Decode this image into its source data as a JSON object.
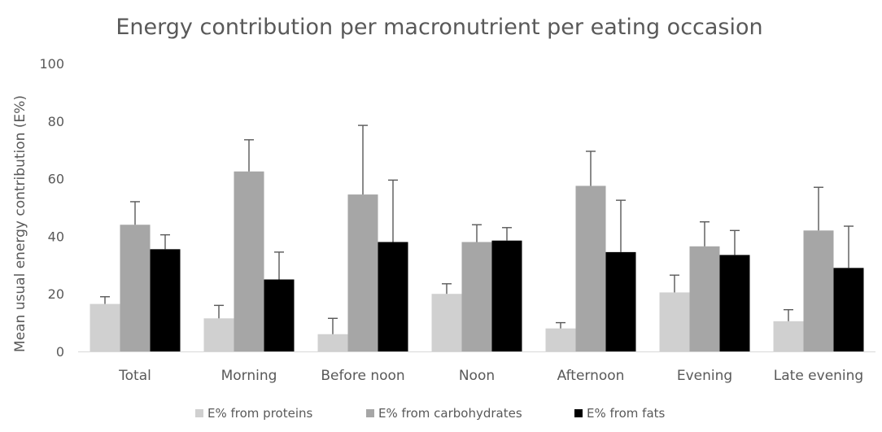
{
  "chart_data": {
    "type": "bar",
    "title": "Energy contribution per macronutrient per eating occasion",
    "xlabel": "",
    "ylabel": "Mean usual energy contribution (E%)",
    "ylim": [
      0,
      100
    ],
    "yticks": [
      0,
      20,
      40,
      60,
      80,
      100
    ],
    "grid": false,
    "legend_position": "bottom",
    "categories": [
      "Total",
      "Morning",
      "Before noon",
      "Noon",
      "Afternoon",
      "Evening",
      "Late evening"
    ],
    "series": [
      {
        "name": "E% from proteins",
        "color": "#d0d0d0",
        "values": [
          16.5,
          11.5,
          6,
          20,
          8,
          20.5,
          10.5
        ],
        "error_upper": [
          2.5,
          4.5,
          5.5,
          3.5,
          2,
          6,
          4
        ]
      },
      {
        "name": "E% from carbohydrates",
        "color": "#a6a6a6",
        "values": [
          44,
          62.5,
          54.5,
          38,
          57.5,
          36.5,
          42
        ],
        "error_upper": [
          8,
          11,
          24,
          6,
          12,
          8.5,
          15
        ]
      },
      {
        "name": "E% from fats",
        "color": "#000000",
        "values": [
          35.5,
          25,
          38,
          38.5,
          34.5,
          33.5,
          29
        ],
        "error_upper": [
          5,
          9.5,
          21.5,
          4.5,
          18,
          8.5,
          14.5
        ]
      }
    ]
  }
}
